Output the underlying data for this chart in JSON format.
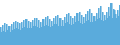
{
  "values": [
    55,
    38,
    60,
    42,
    65,
    40,
    62,
    45,
    58,
    40,
    62,
    44,
    68,
    48,
    72,
    50,
    70,
    48,
    65,
    46,
    70,
    52,
    75,
    55,
    78,
    52,
    72,
    50,
    68,
    52,
    74,
    56,
    80,
    58,
    82,
    54,
    76,
    52,
    70,
    54,
    78,
    58,
    84,
    60,
    86,
    56,
    78,
    54,
    72,
    56,
    80,
    62,
    88,
    64,
    90,
    58,
    82,
    56,
    76,
    58,
    84,
    65,
    92,
    68,
    95,
    62,
    86,
    60,
    80,
    62,
    88,
    68,
    96,
    72,
    100,
    66,
    90,
    64,
    85,
    66,
    92,
    72,
    102,
    76,
    108,
    70,
    95,
    68,
    88,
    72,
    96,
    78,
    110,
    82,
    118,
    74,
    100,
    72,
    90,
    76,
    100,
    82,
    115,
    86,
    125,
    80,
    108,
    105,
    92,
    80,
    105,
    88,
    120,
    92
  ],
  "fill_color": "#5aabdc",
  "line_color": "#5aabdc",
  "background_color": "#ffffff",
  "ylim_min": 0
}
